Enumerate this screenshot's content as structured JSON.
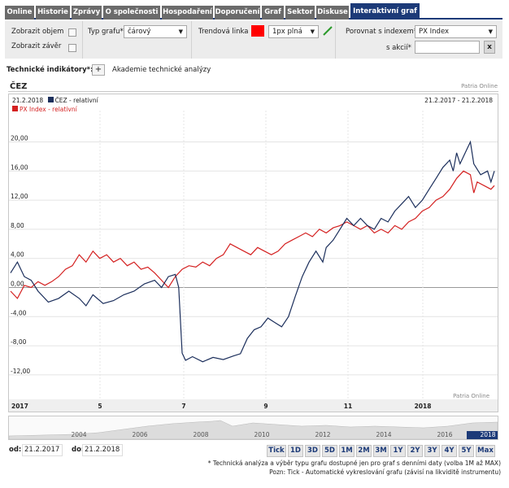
{
  "tabs": [
    {
      "label": "Online",
      "active": false
    },
    {
      "label": "Historie",
      "active": false
    },
    {
      "label": "Zprávy",
      "active": false
    },
    {
      "label": "O společnosti",
      "active": false
    },
    {
      "label": "Hospodaření",
      "active": false
    },
    {
      "label": "Doporučení",
      "active": false
    },
    {
      "label": "Graf",
      "active": false
    },
    {
      "label": "Sektor",
      "active": false
    },
    {
      "label": "Diskuse",
      "active": false
    },
    {
      "label": "Interaktivní graf",
      "active": true
    }
  ],
  "controls": {
    "show_volume": "Zobrazit objem",
    "show_close": "Zobrazit závěr",
    "chart_type_label": "Typ grafu*",
    "chart_type_value": "čárový",
    "trend_label": "Trendová linka",
    "trend_color": "#ff0000",
    "trend_style": "1px plná",
    "compare_label": "Porovnat s indexem*",
    "compare_value": "PX Index",
    "stock_label": "s akcií*",
    "stock_value": "",
    "clear_btn": "x"
  },
  "tech": {
    "label": "Technické indikátory*:",
    "plus": "+",
    "academy": "Akademie technické analýzy"
  },
  "chart": {
    "title": "ČEZ",
    "source": "Patria Online",
    "legend_date": "21.2.2018",
    "series1_label": "ČEZ - relativní",
    "series2_label": "PX Index - relativní",
    "range": "21.2.2017 - 21.2.2018",
    "watermark": "Patria Online"
  },
  "chart_data": {
    "type": "line",
    "ylim": [
      -14,
      22
    ],
    "yticks": [
      "20,00",
      "16,00",
      "12,00",
      "8,00",
      "4,00",
      "0,00",
      "-4,00",
      "-8,00",
      "-12,00"
    ],
    "xticks": [
      "2017",
      "5",
      "7",
      "9",
      "11",
      "2018"
    ],
    "series": [
      {
        "name": "ČEZ - relativní",
        "color": "#1c2f5c",
        "points": [
          [
            0,
            2.0
          ],
          [
            2,
            3.5
          ],
          [
            4,
            1.5
          ],
          [
            6,
            1.0
          ],
          [
            8,
            -0.5
          ],
          [
            11,
            -2.0
          ],
          [
            14,
            -1.5
          ],
          [
            17,
            -0.5
          ],
          [
            20,
            -1.5
          ],
          [
            22,
            -2.5
          ],
          [
            24,
            -1.0
          ],
          [
            27,
            -2.2
          ],
          [
            30,
            -1.8
          ],
          [
            33,
            -1.0
          ],
          [
            36,
            -0.5
          ],
          [
            39,
            0.5
          ],
          [
            42,
            1.0
          ],
          [
            44,
            0.0
          ],
          [
            46,
            1.5
          ],
          [
            48,
            1.8
          ],
          [
            49,
            0.0
          ],
          [
            50,
            -9.0
          ],
          [
            51,
            -10.0
          ],
          [
            53,
            -9.5
          ],
          [
            56,
            -10.2
          ],
          [
            59,
            -9.6
          ],
          [
            62,
            -9.9
          ],
          [
            65,
            -9.4
          ],
          [
            67,
            -9.1
          ],
          [
            69,
            -7.0
          ],
          [
            71,
            -5.8
          ],
          [
            73,
            -5.4
          ],
          [
            75,
            -4.2
          ],
          [
            77,
            -4.8
          ],
          [
            79,
            -5.4
          ],
          [
            81,
            -4.0
          ],
          [
            83,
            -1.2
          ],
          [
            85,
            1.5
          ],
          [
            87,
            3.5
          ],
          [
            89,
            5.0
          ],
          [
            91,
            3.5
          ],
          [
            92,
            5.5
          ],
          [
            94,
            6.5
          ],
          [
            96,
            8.0
          ],
          [
            98,
            9.5
          ],
          [
            100,
            8.5
          ],
          [
            102,
            9.5
          ],
          [
            104,
            8.5
          ],
          [
            106,
            8.0
          ],
          [
            108,
            9.5
          ],
          [
            110,
            9.0
          ],
          [
            112,
            10.5
          ],
          [
            114,
            11.5
          ],
          [
            116,
            12.5
          ],
          [
            118,
            11.0
          ],
          [
            120,
            12.0
          ],
          [
            122,
            13.5
          ],
          [
            124,
            15.0
          ],
          [
            126,
            16.5
          ],
          [
            128,
            17.5
          ],
          [
            129,
            16.0
          ],
          [
            130,
            18.5
          ],
          [
            131,
            17.0
          ],
          [
            133,
            19.0
          ],
          [
            134,
            20.0
          ],
          [
            135,
            17.0
          ],
          [
            137,
            15.5
          ],
          [
            139,
            16.0
          ],
          [
            140,
            14.5
          ],
          [
            141,
            16.0
          ]
        ]
      },
      {
        "name": "PX Index - relativní",
        "color": "#d42020",
        "points": [
          [
            0,
            -0.5
          ],
          [
            2,
            -1.5
          ],
          [
            4,
            0.3
          ],
          [
            6,
            0.0
          ],
          [
            8,
            0.8
          ],
          [
            10,
            0.3
          ],
          [
            12,
            0.8
          ],
          [
            14,
            1.5
          ],
          [
            16,
            2.5
          ],
          [
            18,
            3.0
          ],
          [
            20,
            4.5
          ],
          [
            22,
            3.5
          ],
          [
            24,
            5.0
          ],
          [
            26,
            4.0
          ],
          [
            28,
            4.5
          ],
          [
            30,
            3.5
          ],
          [
            32,
            4.0
          ],
          [
            34,
            3.0
          ],
          [
            36,
            3.5
          ],
          [
            38,
            2.5
          ],
          [
            40,
            2.8
          ],
          [
            42,
            2.0
          ],
          [
            44,
            1.0
          ],
          [
            46,
            0.0
          ],
          [
            48,
            1.5
          ],
          [
            50,
            2.5
          ],
          [
            52,
            3.0
          ],
          [
            54,
            2.8
          ],
          [
            56,
            3.5
          ],
          [
            58,
            3.0
          ],
          [
            60,
            4.0
          ],
          [
            62,
            4.5
          ],
          [
            64,
            6.0
          ],
          [
            66,
            5.5
          ],
          [
            68,
            5.0
          ],
          [
            70,
            4.5
          ],
          [
            72,
            5.5
          ],
          [
            74,
            5.0
          ],
          [
            76,
            4.5
          ],
          [
            78,
            5.0
          ],
          [
            80,
            6.0
          ],
          [
            82,
            6.5
          ],
          [
            84,
            7.0
          ],
          [
            86,
            7.5
          ],
          [
            88,
            7.0
          ],
          [
            90,
            8.0
          ],
          [
            92,
            7.5
          ],
          [
            94,
            8.2
          ],
          [
            96,
            8.5
          ],
          [
            98,
            9.0
          ],
          [
            100,
            8.5
          ],
          [
            102,
            8.0
          ],
          [
            104,
            8.5
          ],
          [
            106,
            7.5
          ],
          [
            108,
            8.0
          ],
          [
            110,
            7.5
          ],
          [
            112,
            8.5
          ],
          [
            114,
            8.0
          ],
          [
            116,
            9.0
          ],
          [
            118,
            9.5
          ],
          [
            120,
            10.5
          ],
          [
            122,
            11.0
          ],
          [
            124,
            12.0
          ],
          [
            126,
            12.5
          ],
          [
            128,
            13.5
          ],
          [
            130,
            15.0
          ],
          [
            132,
            16.0
          ],
          [
            134,
            15.5
          ],
          [
            135,
            13.0
          ],
          [
            136,
            14.5
          ],
          [
            138,
            14.0
          ],
          [
            140,
            13.5
          ],
          [
            141,
            14.0
          ]
        ]
      }
    ]
  },
  "navigator": {
    "years": [
      "2004",
      "2006",
      "2008",
      "2010",
      "2012",
      "2014",
      "2016",
      "2018"
    ]
  },
  "dates": {
    "from_label": "od:",
    "from_value": "21.2.2017",
    "to_label": "do:",
    "to_value": "21.2.2018"
  },
  "periods": [
    {
      "label": "Tick",
      "active": false
    },
    {
      "label": "1D",
      "active": false
    },
    {
      "label": "3D",
      "active": false
    },
    {
      "label": "5D",
      "active": false
    },
    {
      "label": "1M",
      "active": false
    },
    {
      "label": "2M",
      "active": false
    },
    {
      "label": "3M",
      "active": false
    },
    {
      "label": "1Y",
      "active": false
    },
    {
      "label": "2Y",
      "active": false
    },
    {
      "label": "3Y",
      "active": false
    },
    {
      "label": "4Y",
      "active": false
    },
    {
      "label": "5Y",
      "active": false
    },
    {
      "label": "Max",
      "active": false
    }
  ],
  "notes": {
    "line1": "* Technická analýza a výběr typu grafu dostupné jen pro graf s denními daty (volba 1M až MAX)",
    "line2": "Pozn: Tick - Automatické vykreslování grafu (závisí na likviditě instrumentu)"
  }
}
